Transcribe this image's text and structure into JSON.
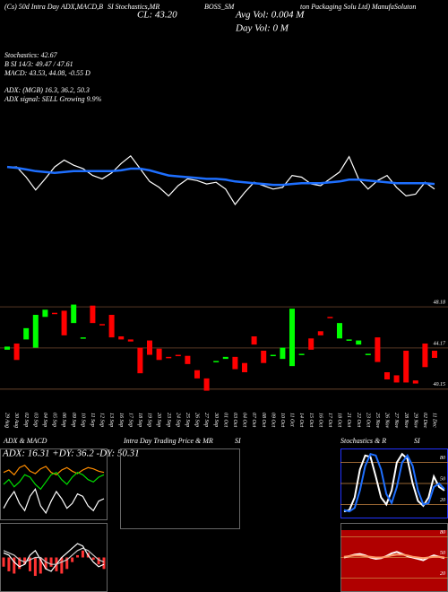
{
  "header": {
    "lines": [
      "(Cs) 50d Intra Day ADX,MACD,B",
      "SI Stochastics,MR",
      "CL: 43.20",
      "BOSS_SM",
      "Avg Vol: 0.004  M",
      "Day Vol: 0  M",
      "ton Packaging Solu Ltd) ManufaSoluton",
      "Stochastics: 42.67",
      "B        SI 14/3: 49.47 / 47.61",
      "MACD: 43.53, 44.08, -0.55 D",
      "ADX:                (MGB) 16.3, 36.2, 50.3",
      "ADX  signal: SELL Growing 9.9%"
    ]
  },
  "chart_data": [
    {
      "type": "line",
      "ylim": [
        0,
        100
      ],
      "series": [
        {
          "color": "#ffffff",
          "values": [
            62,
            62,
            50,
            35,
            48,
            62,
            70,
            64,
            60,
            52,
            48,
            55,
            66,
            75,
            60,
            45,
            38,
            28,
            40,
            48,
            46,
            42,
            44,
            36,
            18,
            32,
            44,
            40,
            36,
            38,
            52,
            50,
            42,
            40,
            48,
            56,
            74,
            48,
            36,
            46,
            52,
            38,
            28,
            30,
            44,
            36
          ]
        },
        {
          "color": "#1e6fff",
          "values": [
            62,
            61,
            59,
            57,
            56,
            55,
            56,
            57,
            57,
            57,
            57,
            57,
            58,
            60,
            60,
            58,
            55,
            52,
            51,
            50,
            49,
            48,
            48,
            47,
            45,
            44,
            43,
            42,
            41,
            41,
            42,
            43,
            43,
            43,
            44,
            45,
            47,
            47,
            46,
            45,
            44,
            43,
            43,
            43,
            43,
            42
          ]
        }
      ]
    },
    {
      "type": "candlestick",
      "ylim": [
        38.3,
        48.8
      ],
      "yticks": [
        48.18,
        44.17,
        40.15
      ],
      "colors": {
        "up": "#00ff00",
        "down": "#ff0000"
      },
      "categories": [
        "29 Aug",
        "30 Aug",
        "02 Sep",
        "03 Sep",
        "04 Sep",
        "05 Sep",
        "06 Sep",
        "09 Sep",
        "10 Sep",
        "11 Sep",
        "12 Sep",
        "13 Sep",
        "16 Sep",
        "17 Sep",
        "18 Sep",
        "19 Sep",
        "20 Sep",
        "23 Sep",
        "24 Sep",
        "25 Sep",
        "26 Sep",
        "27 Sep",
        "30 Sep",
        "01 Oct",
        "03 Oct",
        "04 Oct",
        "07 Oct",
        "08 Oct",
        "09 Oct",
        "10 Oct",
        "11 Oct",
        "14 Oct",
        "15 Oct",
        "16 Oct",
        "17 Oct",
        "18 Oct",
        "21 Oct",
        "22 Oct",
        "23 Oct",
        "25 Nov",
        "26 Nov",
        "27 Nov",
        "28 Nov",
        "29 Nov",
        "02 Dec",
        "11 Dec"
      ],
      "open": [
        44.0,
        44.6,
        45.0,
        44.2,
        47.2,
        47.6,
        47.8,
        46.6,
        45.2,
        48.3,
        46.5,
        47.4,
        45.3,
        45.0,
        44.2,
        44.9,
        44.1,
        43.3,
        43.5,
        43.4,
        42.0,
        41.2,
        42.9,
        43.1,
        43.3,
        42.7,
        45.3,
        43.9,
        43.5,
        43.1,
        42.4,
        43.6,
        45.1,
        45.8,
        47.2,
        45.1,
        44.9,
        44.5,
        43.6,
        45.2,
        41.8,
        41.5,
        43.9,
        41.0,
        44.6,
        43.9
      ],
      "close": [
        44.3,
        43.0,
        46.1,
        47.4,
        47.9,
        47.5,
        45.4,
        48.4,
        45.2,
        46.6,
        46.4,
        45.2,
        45.0,
        44.8,
        41.7,
        43.5,
        43.0,
        43.2,
        43.4,
        42.6,
        41.2,
        40.0,
        42.9,
        43.3,
        42.1,
        41.8,
        44.5,
        42.7,
        43.5,
        44.2,
        48.0,
        43.6,
        44.0,
        45.4,
        47.1,
        46.6,
        45.0,
        44.9,
        43.6,
        42.8,
        41.1,
        40.8,
        40.8,
        40.7,
        42.3,
        43.2
      ]
    },
    {
      "type": "line",
      "title": "ADX  & MACD",
      "subtitle": "ADX: 16.31  +DY: 36.2  -DY: 50.31",
      "ylim": [
        0,
        60
      ],
      "series": [
        {
          "color": "#ff8c00",
          "values": [
            40,
            42,
            38,
            44,
            46,
            41,
            39,
            43,
            45,
            40,
            38,
            42,
            44,
            41,
            39,
            42,
            44,
            43,
            41,
            40
          ]
        },
        {
          "color": "#00dd00",
          "values": [
            30,
            34,
            28,
            32,
            38,
            36,
            30,
            26,
            32,
            38,
            40,
            34,
            30,
            36,
            40,
            38,
            34,
            32,
            36,
            38
          ]
        },
        {
          "color": "#ffffff",
          "values": [
            10,
            18,
            24,
            14,
            8,
            20,
            26,
            12,
            6,
            16,
            24,
            18,
            10,
            14,
            22,
            20,
            12,
            8,
            16,
            18
          ]
        }
      ]
    },
    {
      "type": "macd",
      "ylim": [
        -1.5,
        1.5
      ],
      "values": [
        -0.4,
        -0.6,
        -0.7,
        -0.5,
        -0.3,
        -0.6,
        -0.8,
        -0.7,
        -0.5,
        -0.4,
        -0.6,
        -0.7,
        -0.5,
        -0.2,
        0.1,
        0.3,
        0.2,
        -0.1,
        -0.3,
        -0.5
      ],
      "series": [
        {
          "color": "#ffffff",
          "values": [
            0.2,
            0.1,
            -0.2,
            -0.4,
            -0.3,
            0.1,
            0.3,
            -0.1,
            -0.5,
            -0.6,
            -0.3,
            0.0,
            0.2,
            0.4,
            0.6,
            0.5,
            0.1,
            -0.2,
            -0.4,
            -0.3
          ]
        },
        {
          "color": "#cccccc",
          "values": [
            0.3,
            0.2,
            0.1,
            -0.1,
            -0.2,
            -0.1,
            0.0,
            0.0,
            -0.2,
            -0.3,
            -0.3,
            -0.2,
            -0.1,
            0.1,
            0.3,
            0.4,
            0.3,
            0.1,
            -0.1,
            -0.2
          ]
        }
      ]
    },
    {
      "type": "empty",
      "title": "Intra Day Trading Price & MR",
      "subtitle": "SI"
    },
    {
      "type": "line",
      "title": "Stochastics & R",
      "subtitle": "SI",
      "ylim": [
        0,
        100
      ],
      "yticks": [
        80,
        50,
        20
      ],
      "series": [
        {
          "color": "#ffffff",
          "values": [
            10,
            12,
            30,
            70,
            90,
            88,
            60,
            30,
            20,
            40,
            80,
            92,
            85,
            50,
            25,
            18,
            30,
            60,
            45,
            40
          ]
        },
        {
          "color": "#1e6fff",
          "values": [
            12,
            10,
            15,
            40,
            75,
            92,
            90,
            70,
            35,
            22,
            45,
            80,
            90,
            75,
            40,
            20,
            22,
            45,
            50,
            42
          ]
        }
      ]
    },
    {
      "type": "line",
      "ylim": [
        0,
        100
      ],
      "yticks": [
        80,
        50,
        20
      ],
      "background": "#b00000",
      "series": [
        {
          "color": "#ffffff",
          "values": [
            50,
            52,
            54,
            55,
            53,
            50,
            48,
            49,
            52,
            56,
            58,
            55,
            52,
            50,
            48,
            46,
            50,
            53,
            51,
            49
          ]
        },
        {
          "color": "#ff9966",
          "values": [
            51,
            52,
            53,
            53,
            52,
            51,
            50,
            50,
            51,
            53,
            54,
            54,
            53,
            51,
            50,
            49,
            50,
            51,
            51,
            50
          ]
        }
      ]
    }
  ]
}
